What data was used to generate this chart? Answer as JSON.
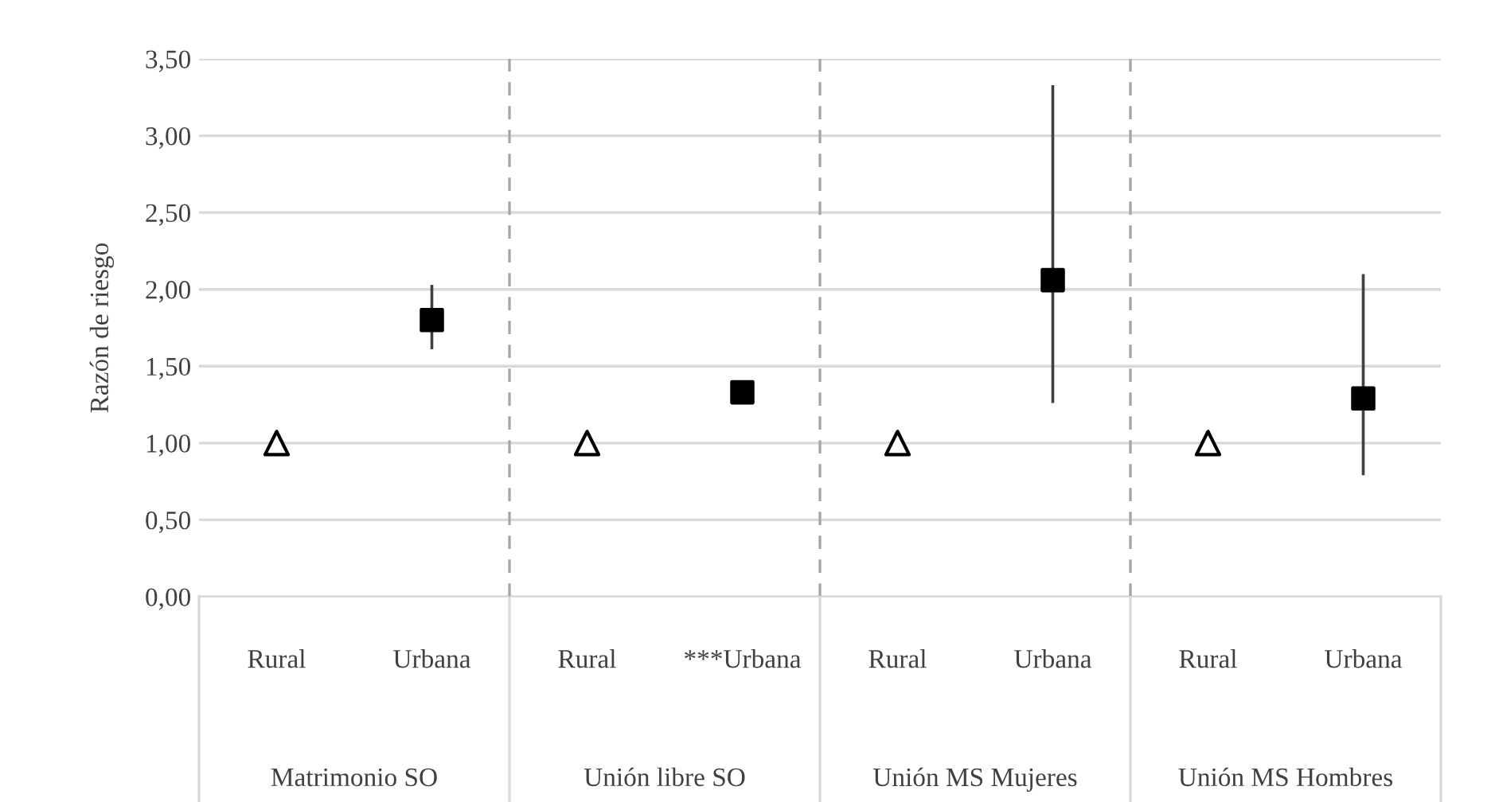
{
  "chart_data": {
    "type": "scatter",
    "ylabel": "Razón de riesgo",
    "categories": [
      "Rural",
      "Urbana",
      "Rural",
      "***Urbana",
      "Rural",
      "Urbana",
      "Rural",
      "Urbana"
    ],
    "annotations": [
      "Matrimonio SO",
      "Unión libre SO",
      "Unión MS Mujeres",
      "Unión MS Hombres"
    ],
    "series": [
      {
        "color": "#000000",
        "marker": "triangle",
        "values": [
          1.0,
          null,
          1.0,
          null,
          1.0,
          null,
          1.0,
          null
        ]
      },
      {
        "color": "#000000",
        "marker": "square",
        "values": [
          null,
          1.8,
          null,
          1.33,
          null,
          2.06,
          null,
          1.29
        ],
        "errors": [
          null,
          [
            1.62,
            2.02
          ],
          null,
          null,
          null,
          [
            1.27,
            3.32
          ],
          null,
          [
            0.8,
            2.09
          ]
        ]
      }
    ],
    "ylim": [
      0,
      3.5
    ],
    "yticks": [
      {
        "value": 0,
        "label": "0,00"
      },
      {
        "value": 0.5,
        "label": "0,50"
      },
      {
        "value": 1,
        "label": "1,00"
      },
      {
        "value": 1.5,
        "label": "1,50"
      },
      {
        "value": 2,
        "label": "2,00"
      },
      {
        "value": 2.5,
        "label": "2,50"
      },
      {
        "value": 3,
        "label": "3,00"
      },
      {
        "value": 3.5,
        "label": "3,50"
      }
    ],
    "grid": "y"
  }
}
